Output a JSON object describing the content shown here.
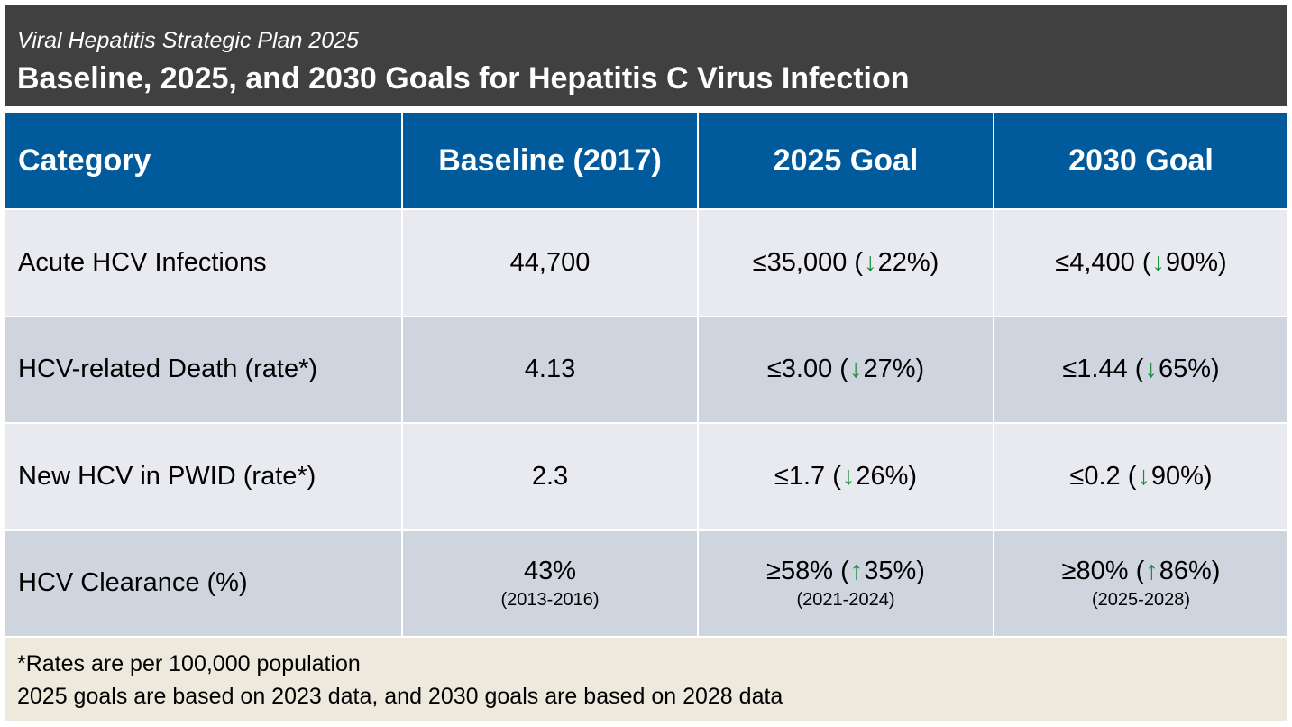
{
  "header": {
    "subtitle": "Viral Hepatitis Strategic Plan 2025",
    "title": "Baseline, 2025, and 2030 Goals for Hepatitis C Virus Infection"
  },
  "table": {
    "columns": [
      "Category",
      "Baseline (2017)",
      "2025 Goal",
      "2030 Goal"
    ],
    "rows": [
      {
        "category": "Acute HCV Infections",
        "baseline": "44,700",
        "goal2025": {
          "value": "≤35,000 (",
          "arrow": "down",
          "pct": "22%)"
        },
        "goal2030": {
          "value": "≤4,400 (",
          "arrow": "down",
          "pct": "90%)"
        }
      },
      {
        "category": "HCV-related Death (rate*)",
        "baseline": "4.13",
        "goal2025": {
          "value": "≤3.00 (",
          "arrow": "down",
          "pct": "27%)"
        },
        "goal2030": {
          "value": "≤1.44 (",
          "arrow": "down",
          "pct": "65%)"
        }
      },
      {
        "category": "New HCV in PWID (rate*)",
        "baseline": "2.3",
        "goal2025": {
          "value": "≤1.7 (",
          "arrow": "down",
          "pct": "26%)"
        },
        "goal2030": {
          "value": "≤0.2 (",
          "arrow": "down",
          "pct": "90%)"
        }
      },
      {
        "category": "HCV Clearance (%)",
        "baseline": "43%",
        "baseline_years": "(2013-2016)",
        "goal2025": {
          "value": "≥58% (",
          "arrow": "up",
          "pct": "35%)",
          "years": "(2021-2024)"
        },
        "goal2030": {
          "value": "≥80% (",
          "arrow": "up",
          "pct": "86%)",
          "years": "(2025-2028)"
        }
      }
    ]
  },
  "footnote": {
    "line1": "*Rates are per 100,000 population",
    "line2": "2025 goals are based on 2023 data, and 2030 goals are based on 2028 data"
  },
  "colors": {
    "header_bg": "#404040",
    "table_header_bg": "#005a9c",
    "row_light": "#e8eaef",
    "row_dark": "#cfd5df",
    "footnote_bg": "#eee9dd",
    "arrow": "#1b8a3a"
  },
  "icons": {
    "down": "arrow-down-icon",
    "up": "arrow-up-icon"
  }
}
